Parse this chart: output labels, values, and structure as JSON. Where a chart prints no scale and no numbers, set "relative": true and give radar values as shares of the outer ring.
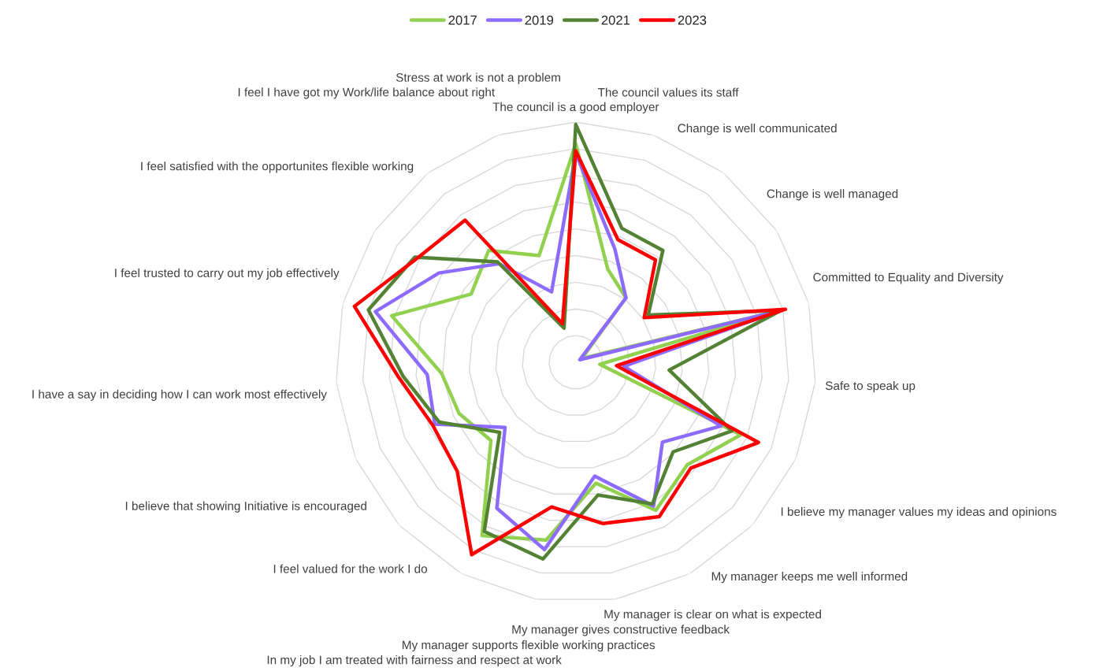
{
  "chart_data": {
    "type": "radar",
    "relative": true,
    "grid": true,
    "legend": "top",
    "marker": "none",
    "line_style": "solid",
    "categories": [
      "The council is a good employer",
      "The council values its staff",
      "Change is well communicated",
      "Change is well managed",
      "Committed to Equality and Diversity",
      "Safe to speak up",
      "I believe my manager values my ideas and opinions",
      "My manager keeps me well informed",
      "My manager is clear on what is expected",
      "My manager gives constructive feedback",
      "My manager supports flexible working practices",
      "In my job I am treated with fairness and respect at work",
      "I feel valued for the work I do",
      "I believe that showing Initiative is encouraged",
      "I have a say in deciding how I can work most effectively",
      "I feel trusted to carry out my job effectively",
      "I feel satisfied with the opportunites flexible working",
      "I feel I have got my Work/life balance about right",
      "Stress at work is not a problem"
    ],
    "series": [
      {
        "name": "2017",
        "color": "#92d050",
        "values": [
          0.91,
          0.41,
          0.34,
          0.03,
          0.88,
          0.1,
          0.75,
          0.63,
          0.7,
          0.51,
          0.75,
          0.82,
          0.48,
          0.53,
          0.56,
          0.79,
          0.52,
          0.59,
          0.47
        ]
      },
      {
        "name": "2019",
        "color": "#8e6bff",
        "values": [
          0.87,
          0.5,
          0.34,
          0.02,
          0.88,
          0.2,
          0.66,
          0.49,
          0.68,
          0.48,
          0.79,
          0.69,
          0.4,
          0.64,
          0.62,
          0.86,
          0.68,
          0.52,
          0.31
        ]
      },
      {
        "name": "2021",
        "color": "#548235",
        "values": [
          0.99,
          0.59,
          0.59,
          0.36,
          0.88,
          0.39,
          0.71,
          0.55,
          0.67,
          0.56,
          0.83,
          0.8,
          0.43,
          0.62,
          0.72,
          0.89,
          0.8,
          0.53,
          0.15
        ]
      },
      {
        "name": "2023",
        "color": "#ff0000",
        "values": [
          0.88,
          0.54,
          0.54,
          0.34,
          0.9,
          0.17,
          0.83,
          0.65,
          0.73,
          0.68,
          0.61,
          0.91,
          0.67,
          0.65,
          0.74,
          0.95,
          0.79,
          0.75,
          0.17
        ]
      }
    ]
  }
}
